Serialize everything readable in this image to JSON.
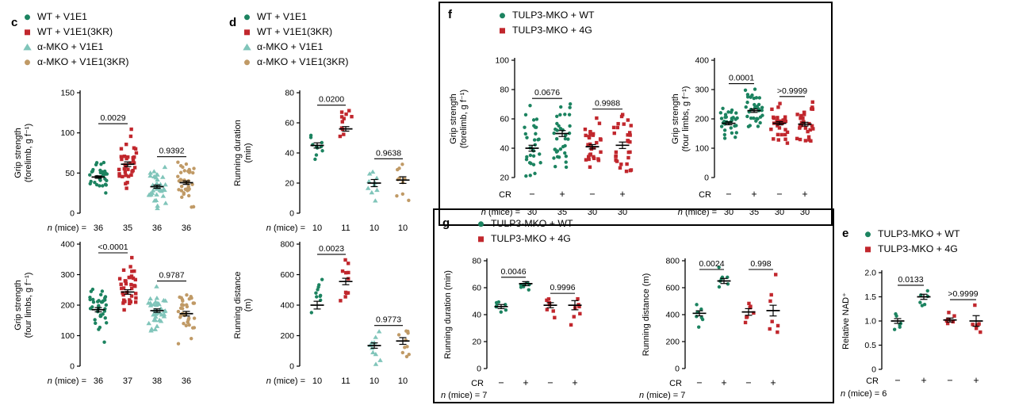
{
  "colors": {
    "green": "#1c8360",
    "red": "#c1272d",
    "teal": "#80c5ba",
    "tan": "#c09a66"
  },
  "panel_labels": {
    "c": "c",
    "d": "d",
    "e": "e",
    "f": "f",
    "g": "g"
  },
  "legends": {
    "cd": [
      {
        "label": "WT + V1E1",
        "color": "green",
        "marker": "circle"
      },
      {
        "label": "WT + V1E1(3KR)",
        "color": "red",
        "marker": "square"
      },
      {
        "label": "α-MKO + V1E1",
        "color": "teal",
        "marker": "triangle"
      },
      {
        "label": "α-MKO + V1E1(3KR)",
        "color": "tan",
        "marker": "circle"
      }
    ],
    "fge": [
      {
        "label": "TULP3-MKO + WT",
        "color": "green",
        "marker": "circle"
      },
      {
        "label": "TULP3-MKO + 4G",
        "color": "red",
        "marker": "square"
      }
    ]
  },
  "chart_data": [
    {
      "id": "c1",
      "panel": "c",
      "type": "scatter",
      "ylabel_lines": [
        "Grip strength",
        "(forelimb, g f⁻¹)"
      ],
      "ylim": [
        0,
        150
      ],
      "yticks": [
        0,
        50,
        100,
        150
      ],
      "ytick_labels": [
        "0",
        "50",
        "100",
        "150"
      ],
      "groups": [
        {
          "label": "WT + V1E1",
          "color": "green",
          "marker": "circle",
          "n": 36,
          "mean": 45,
          "sd": 9
        },
        {
          "label": "WT + V1E1(3KR)",
          "color": "red",
          "marker": "square",
          "n": 35,
          "mean": 61,
          "sd": 17
        },
        {
          "label": "α-MKO + V1E1",
          "color": "teal",
          "marker": "triangle",
          "n": 36,
          "mean": 33,
          "sd": 12
        },
        {
          "label": "α-MKO + V1E1(3KR)",
          "color": "tan",
          "marker": "circle",
          "n": 36,
          "mean": 38,
          "sd": 13
        }
      ],
      "comparisons": [
        {
          "groups": [
            0,
            1
          ],
          "p": "0.0029"
        },
        {
          "groups": [
            2,
            3
          ],
          "p": "0.9392"
        }
      ],
      "n_row": {
        "label": "n (mice) =",
        "values": [
          "36",
          "35",
          "36",
          "36"
        ]
      }
    },
    {
      "id": "c2",
      "panel": "c",
      "type": "scatter",
      "ylabel_lines": [
        "Grip strength",
        "(four limbs, g f⁻¹)"
      ],
      "ylim": [
        0,
        400
      ],
      "yticks": [
        0,
        100,
        200,
        300,
        400
      ],
      "ytick_labels": [
        "0",
        "100",
        "200",
        "300",
        "400"
      ],
      "groups": [
        {
          "label": "WT + V1E1",
          "color": "green",
          "marker": "circle",
          "n": 36,
          "mean": 185,
          "sd": 42
        },
        {
          "label": "WT + V1E1(3KR)",
          "color": "red",
          "marker": "square",
          "n": 37,
          "mean": 243,
          "sd": 45
        },
        {
          "label": "α-MKO + V1E1",
          "color": "teal",
          "marker": "triangle",
          "n": 38,
          "mean": 182,
          "sd": 35
        },
        {
          "label": "α-MKO + V1E1(3KR)",
          "color": "tan",
          "marker": "circle",
          "n": 36,
          "mean": 172,
          "sd": 45
        }
      ],
      "comparisons": [
        {
          "groups": [
            0,
            1
          ],
          "p": "<0.0001"
        },
        {
          "groups": [
            2,
            3
          ],
          "p": "0.9787"
        }
      ],
      "n_row": {
        "label": "n (mice) =",
        "values": [
          "36",
          "37",
          "38",
          "36"
        ]
      }
    },
    {
      "id": "d1",
      "panel": "d",
      "type": "scatter",
      "ylabel_lines": [
        "Running duration",
        "(min)"
      ],
      "ylim": [
        0,
        80
      ],
      "yticks": [
        0,
        20,
        40,
        60,
        80
      ],
      "ytick_labels": [
        "0",
        "20",
        "40",
        "60",
        "80"
      ],
      "groups": [
        {
          "label": "WT + V1E1",
          "color": "green",
          "marker": "circle",
          "n": 10,
          "mean": 45,
          "sd": 5.5
        },
        {
          "label": "WT + V1E1(3KR)",
          "color": "red",
          "marker": "square",
          "n": 11,
          "mean": 56,
          "sd": 5
        },
        {
          "label": "α-MKO + V1E1",
          "color": "teal",
          "marker": "triangle",
          "n": 10,
          "mean": 20,
          "sd": 7.5
        },
        {
          "label": "α-MKO + V1E1(3KR)",
          "color": "tan",
          "marker": "circle",
          "n": 10,
          "mean": 22,
          "sd": 7
        }
      ],
      "comparisons": [
        {
          "groups": [
            0,
            1
          ],
          "p": "0.0200"
        },
        {
          "groups": [
            2,
            3
          ],
          "p": "0.9638"
        }
      ],
      "n_row": {
        "label": "n (mice) =",
        "values": [
          "10",
          "11",
          "10",
          "10"
        ]
      }
    },
    {
      "id": "d2",
      "panel": "d",
      "type": "scatter",
      "ylabel_lines": [
        "Running distance",
        "(m)"
      ],
      "ylim": [
        0,
        800
      ],
      "yticks": [
        0,
        200,
        400,
        600,
        800
      ],
      "ytick_labels": [
        "0",
        "200",
        "400",
        "600",
        "800"
      ],
      "groups": [
        {
          "label": "WT + V1E1",
          "color": "green",
          "marker": "circle",
          "n": 10,
          "mean": 400,
          "sd": 80
        },
        {
          "label": "WT + V1E1(3KR)",
          "color": "red",
          "marker": "square",
          "n": 11,
          "mean": 555,
          "sd": 70
        },
        {
          "label": "α-MKO + V1E1",
          "color": "teal",
          "marker": "triangle",
          "n": 10,
          "mean": 135,
          "sd": 55
        },
        {
          "label": "α-MKO + V1E1(3KR)",
          "color": "tan",
          "marker": "circle",
          "n": 10,
          "mean": 165,
          "sd": 70
        }
      ],
      "comparisons": [
        {
          "groups": [
            0,
            1
          ],
          "p": "0.0023"
        },
        {
          "groups": [
            2,
            3
          ],
          "p": "0.9773"
        }
      ],
      "n_row": {
        "label": "n (mice) =",
        "values": [
          "10",
          "11",
          "10",
          "10"
        ]
      }
    },
    {
      "id": "f1",
      "panel": "f",
      "type": "scatter",
      "ylabel_lines": [
        "Grip strength",
        "(forelimb, g f⁻¹)"
      ],
      "ylim": [
        20,
        100
      ],
      "yticks": [
        20,
        40,
        60,
        80,
        100
      ],
      "ytick_labels": [
        "20",
        "40",
        "60",
        "80",
        "100"
      ],
      "groups": [
        {
          "label": "TULP3-MKO + WT, CR −",
          "color": "green",
          "marker": "circle",
          "n": 30,
          "mean": 40,
          "sd": 11
        },
        {
          "label": "TULP3-MKO + WT, CR +",
          "color": "green",
          "marker": "circle",
          "n": 35,
          "mean": 50,
          "sd": 12
        },
        {
          "label": "TULP3-MKO + 4G, CR −",
          "color": "red",
          "marker": "square",
          "n": 30,
          "mean": 41,
          "sd": 8
        },
        {
          "label": "TULP3-MKO + 4G, CR +",
          "color": "red",
          "marker": "square",
          "n": 30,
          "mean": 42,
          "sd": 12
        }
      ],
      "comparisons": [
        {
          "groups": [
            0,
            1
          ],
          "p": "0.0676"
        },
        {
          "groups": [
            2,
            3
          ],
          "p": "0.9988"
        }
      ],
      "cr_row": {
        "label": "CR",
        "values": [
          "−",
          "+",
          "−",
          "+"
        ]
      },
      "n_row": {
        "label": "n (mice) =",
        "values": [
          "30",
          "35",
          "30",
          "30"
        ]
      }
    },
    {
      "id": "f2",
      "panel": "f",
      "type": "scatter",
      "ylabel_lines": [
        "Grip strength",
        "(four limbs, g f⁻¹)"
      ],
      "ylim": [
        0,
        400
      ],
      "yticks": [
        0,
        100,
        200,
        300,
        400
      ],
      "ytick_labels": [
        "0",
        "100",
        "200",
        "300",
        "400"
      ],
      "groups": [
        {
          "label": "TULP3-MKO + WT, CR −",
          "color": "green",
          "marker": "circle",
          "n": 30,
          "mean": 185,
          "sd": 28
        },
        {
          "label": "TULP3-MKO + WT, CR +",
          "color": "green",
          "marker": "circle",
          "n": 35,
          "mean": 228,
          "sd": 35
        },
        {
          "label": "TULP3-MKO + 4G, CR −",
          "color": "red",
          "marker": "square",
          "n": 30,
          "mean": 185,
          "sd": 30
        },
        {
          "label": "TULP3-MKO + 4G, CR +",
          "color": "red",
          "marker": "square",
          "n": 30,
          "mean": 182,
          "sd": 35
        }
      ],
      "comparisons": [
        {
          "groups": [
            0,
            1
          ],
          "p": "0.0001"
        },
        {
          "groups": [
            2,
            3
          ],
          "p": ">0.9999"
        }
      ],
      "cr_row": {
        "label": "CR",
        "values": [
          "−",
          "+",
          "−",
          "+"
        ]
      },
      "n_row": {
        "label": "n (mice) =",
        "values": [
          "30",
          "35",
          "30",
          "30"
        ]
      }
    },
    {
      "id": "g1",
      "panel": "g",
      "type": "scatter",
      "ylabel_lines": [
        "Running duration (min)"
      ],
      "ylim": [
        0,
        80
      ],
      "yticks": [
        0,
        20,
        40,
        60,
        80
      ],
      "ytick_labels": [
        "0",
        "20",
        "40",
        "60",
        "80"
      ],
      "groups": [
        {
          "label": "TULP3-MKO + WT, CR −",
          "color": "green",
          "marker": "circle",
          "n": 7,
          "mean": 46,
          "sd": 4
        },
        {
          "label": "TULP3-MKO + WT, CR +",
          "color": "green",
          "marker": "circle",
          "n": 7,
          "mean": 63,
          "sd": 4
        },
        {
          "label": "TULP3-MKO + 4G, CR −",
          "color": "red",
          "marker": "square",
          "n": 7,
          "mean": 47,
          "sd": 5
        },
        {
          "label": "TULP3-MKO + 4G, CR +",
          "color": "red",
          "marker": "square",
          "n": 7,
          "mean": 47,
          "sd": 9
        }
      ],
      "comparisons": [
        {
          "groups": [
            0,
            1
          ],
          "p": "0.0046"
        },
        {
          "groups": [
            2,
            3
          ],
          "p": "0.9996"
        }
      ],
      "cr_row": {
        "label": "CR",
        "values": [
          "−",
          "+",
          "−",
          "+"
        ]
      },
      "n_text": "n (mice) = 7"
    },
    {
      "id": "g2",
      "panel": "g",
      "type": "scatter",
      "ylabel_lines": [
        "Running distance (m)"
      ],
      "ylim": [
        0,
        800
      ],
      "yticks": [
        0,
        200,
        400,
        600,
        800
      ],
      "ytick_labels": [
        "0",
        "200",
        "400",
        "600",
        "800"
      ],
      "groups": [
        {
          "label": "TULP3-MKO + WT, CR −",
          "color": "green",
          "marker": "circle",
          "n": 7,
          "mean": 410,
          "sd": 50
        },
        {
          "label": "TULP3-MKO + WT, CR +",
          "color": "green",
          "marker": "circle",
          "n": 7,
          "mean": 650,
          "sd": 50
        },
        {
          "label": "TULP3-MKO + 4G, CR −",
          "color": "red",
          "marker": "square",
          "n": 7,
          "mean": 420,
          "sd": 65
        },
        {
          "label": "TULP3-MKO + 4G, CR +",
          "color": "red",
          "marker": "square",
          "n": 7,
          "mean": 430,
          "sd": 105
        }
      ],
      "comparisons": [
        {
          "groups": [
            0,
            1
          ],
          "p": "0.0024"
        },
        {
          "groups": [
            2,
            3
          ],
          "p": "0.998"
        }
      ],
      "cr_row": {
        "label": "CR",
        "values": [
          "−",
          "+",
          "−",
          "+"
        ]
      },
      "n_text": "n (mice) = 7"
    },
    {
      "id": "e1",
      "panel": "e",
      "type": "scatter",
      "ylabel_lines": [
        "Relative NAD⁺"
      ],
      "ylim": [
        0,
        2
      ],
      "yticks": [
        0,
        0.5,
        1.0,
        1.5,
        2.0
      ],
      "ytick_labels": [
        "0",
        "0.5",
        "1.0",
        "1.5",
        "2.0"
      ],
      "groups": [
        {
          "label": "TULP3-MKO + WT, CR −",
          "color": "green",
          "marker": "circle",
          "n": 6,
          "mean": 1.0,
          "sd": 0.12
        },
        {
          "label": "TULP3-MKO + WT, CR +",
          "color": "green",
          "marker": "circle",
          "n": 6,
          "mean": 1.5,
          "sd": 0.13
        },
        {
          "label": "TULP3-MKO + 4G, CR −",
          "color": "red",
          "marker": "square",
          "n": 6,
          "mean": 1.02,
          "sd": 0.1
        },
        {
          "label": "TULP3-MKO + 4G, CR +",
          "color": "red",
          "marker": "square",
          "n": 6,
          "mean": 1.0,
          "sd": 0.27
        }
      ],
      "comparisons": [
        {
          "groups": [
            0,
            1
          ],
          "p": "0.0133"
        },
        {
          "groups": [
            2,
            3
          ],
          "p": ">0.9999"
        }
      ],
      "cr_row": {
        "label": "CR",
        "values": [
          "−",
          "+",
          "−",
          "+"
        ]
      },
      "n_text": "n (mice) = 6"
    }
  ]
}
